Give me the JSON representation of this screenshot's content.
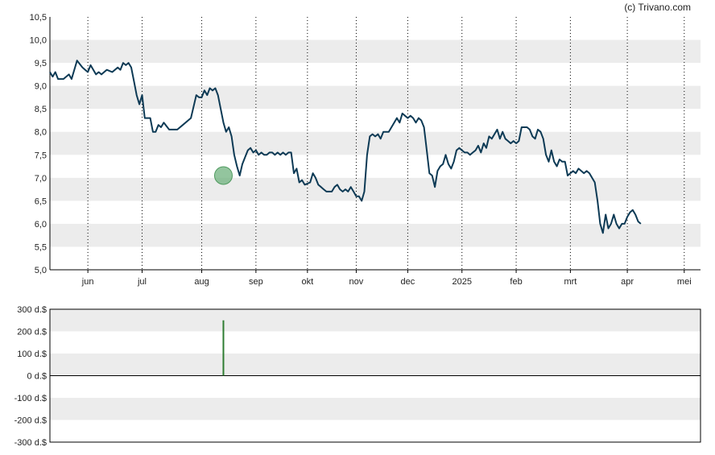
{
  "copyright": "(c) Trivano.com",
  "colors": {
    "band": "#ececec",
    "line": "#0d3a55",
    "marker_fill": "#6fb27d",
    "volume_bar": "#2e7d32",
    "vgrid": "#000000"
  },
  "chart_data": [
    {
      "type": "line",
      "title": "",
      "xlabel": "",
      "ylabel": "",
      "ylim": [
        5.0,
        10.5
      ],
      "y_ticks": [
        "5,0",
        "5,5",
        "6,0",
        "6,5",
        "7,0",
        "7,5",
        "8,0",
        "8,5",
        "9,0",
        "9,5",
        "10,0",
        "10,5"
      ],
      "x_ticks": [
        "jun",
        "jul",
        "aug",
        "sep",
        "okt",
        "nov",
        "dec",
        "2025",
        "feb",
        "mrt",
        "apr",
        "mei"
      ],
      "x_tick_pos": [
        0.7,
        1.7,
        2.8,
        3.8,
        4.75,
        5.65,
        6.6,
        7.6,
        8.6,
        9.6,
        10.65,
        11.7
      ],
      "grid": "horizontal bands, dotted vertical lines at month ticks",
      "marker": {
        "x": 3.2,
        "y": 7.05
      },
      "series": [
        {
          "values": [
            [
              0.0,
              9.3
            ],
            [
              0.05,
              9.2
            ],
            [
              0.1,
              9.3
            ],
            [
              0.15,
              9.15
            ],
            [
              0.25,
              9.15
            ],
            [
              0.3,
              9.2
            ],
            [
              0.35,
              9.25
            ],
            [
              0.4,
              9.15
            ],
            [
              0.5,
              9.55
            ],
            [
              0.6,
              9.4
            ],
            [
              0.65,
              9.35
            ],
            [
              0.7,
              9.3
            ],
            [
              0.75,
              9.45
            ],
            [
              0.85,
              9.25
            ],
            [
              0.9,
              9.3
            ],
            [
              0.95,
              9.25
            ],
            [
              1.0,
              9.3
            ],
            [
              1.05,
              9.35
            ],
            [
              1.15,
              9.3
            ],
            [
              1.25,
              9.4
            ],
            [
              1.3,
              9.35
            ],
            [
              1.35,
              9.5
            ],
            [
              1.4,
              9.45
            ],
            [
              1.45,
              9.5
            ],
            [
              1.5,
              9.4
            ],
            [
              1.55,
              9.1
            ],
            [
              1.6,
              8.8
            ],
            [
              1.65,
              8.6
            ],
            [
              1.7,
              8.8
            ],
            [
              1.75,
              8.3
            ],
            [
              1.85,
              8.3
            ],
            [
              1.9,
              8.0
            ],
            [
              1.95,
              8.0
            ],
            [
              2.0,
              8.15
            ],
            [
              2.05,
              8.1
            ],
            [
              2.1,
              8.2
            ],
            [
              2.2,
              8.05
            ],
            [
              2.35,
              8.05
            ],
            [
              2.45,
              8.15
            ],
            [
              2.55,
              8.25
            ],
            [
              2.6,
              8.3
            ],
            [
              2.7,
              8.8
            ],
            [
              2.75,
              8.75
            ],
            [
              2.8,
              8.75
            ],
            [
              2.85,
              8.9
            ],
            [
              2.9,
              8.8
            ],
            [
              2.95,
              8.95
            ],
            [
              3.0,
              8.9
            ],
            [
              3.05,
              8.95
            ],
            [
              3.1,
              8.8
            ],
            [
              3.15,
              8.5
            ],
            [
              3.2,
              8.2
            ],
            [
              3.25,
              8.0
            ],
            [
              3.3,
              8.1
            ],
            [
              3.35,
              7.9
            ],
            [
              3.4,
              7.5
            ],
            [
              3.45,
              7.25
            ],
            [
              3.5,
              7.05
            ],
            [
              3.55,
              7.3
            ],
            [
              3.6,
              7.45
            ],
            [
              3.65,
              7.6
            ],
            [
              3.7,
              7.65
            ],
            [
              3.75,
              7.55
            ],
            [
              3.8,
              7.6
            ],
            [
              3.85,
              7.5
            ],
            [
              3.9,
              7.55
            ],
            [
              3.95,
              7.5
            ],
            [
              4.0,
              7.5
            ],
            [
              4.05,
              7.55
            ],
            [
              4.1,
              7.55
            ],
            [
              4.15,
              7.5
            ],
            [
              4.2,
              7.55
            ],
            [
              4.25,
              7.5
            ],
            [
              4.3,
              7.55
            ],
            [
              4.35,
              7.5
            ],
            [
              4.4,
              7.55
            ],
            [
              4.45,
              7.55
            ],
            [
              4.5,
              7.1
            ],
            [
              4.55,
              7.2
            ],
            [
              4.6,
              6.9
            ],
            [
              4.65,
              6.95
            ],
            [
              4.7,
              6.85
            ],
            [
              4.8,
              6.9
            ],
            [
              4.85,
              7.1
            ],
            [
              4.9,
              7.0
            ],
            [
              4.95,
              6.85
            ],
            [
              5.0,
              6.8
            ],
            [
              5.05,
              6.75
            ],
            [
              5.1,
              6.7
            ],
            [
              5.2,
              6.7
            ],
            [
              5.25,
              6.8
            ],
            [
              5.3,
              6.85
            ],
            [
              5.35,
              6.75
            ],
            [
              5.4,
              6.7
            ],
            [
              5.45,
              6.75
            ],
            [
              5.5,
              6.7
            ],
            [
              5.55,
              6.8
            ],
            [
              5.6,
              6.7
            ],
            [
              5.65,
              6.6
            ],
            [
              5.7,
              6.6
            ],
            [
              5.75,
              6.5
            ],
            [
              5.8,
              6.7
            ],
            [
              5.85,
              7.5
            ],
            [
              5.9,
              7.9
            ],
            [
              5.95,
              7.95
            ],
            [
              6.0,
              7.9
            ],
            [
              6.05,
              7.95
            ],
            [
              6.1,
              7.85
            ],
            [
              6.15,
              8.0
            ],
            [
              6.25,
              8.0
            ],
            [
              6.3,
              8.1
            ],
            [
              6.35,
              8.2
            ],
            [
              6.4,
              8.3
            ],
            [
              6.45,
              8.2
            ],
            [
              6.5,
              8.4
            ],
            [
              6.55,
              8.35
            ],
            [
              6.6,
              8.3
            ],
            [
              6.65,
              8.35
            ],
            [
              6.7,
              8.3
            ],
            [
              6.75,
              8.2
            ],
            [
              6.8,
              8.3
            ],
            [
              6.85,
              8.25
            ],
            [
              6.9,
              8.1
            ],
            [
              6.95,
              7.6
            ],
            [
              7.0,
              7.1
            ],
            [
              7.05,
              7.05
            ],
            [
              7.1,
              6.8
            ],
            [
              7.15,
              7.15
            ],
            [
              7.2,
              7.25
            ],
            [
              7.25,
              7.3
            ],
            [
              7.3,
              7.5
            ],
            [
              7.35,
              7.3
            ],
            [
              7.4,
              7.2
            ],
            [
              7.45,
              7.35
            ],
            [
              7.5,
              7.6
            ],
            [
              7.55,
              7.65
            ],
            [
              7.6,
              7.6
            ],
            [
              7.65,
              7.55
            ],
            [
              7.7,
              7.55
            ],
            [
              7.75,
              7.5
            ],
            [
              7.8,
              7.55
            ],
            [
              7.85,
              7.6
            ],
            [
              7.9,
              7.7
            ],
            [
              7.95,
              7.55
            ],
            [
              8.0,
              7.75
            ],
            [
              8.05,
              7.65
            ],
            [
              8.1,
              7.9
            ],
            [
              8.15,
              7.85
            ],
            [
              8.2,
              7.95
            ],
            [
              8.25,
              8.05
            ],
            [
              8.3,
              7.85
            ],
            [
              8.35,
              8.0
            ],
            [
              8.4,
              7.85
            ],
            [
              8.45,
              7.8
            ],
            [
              8.5,
              7.75
            ],
            [
              8.55,
              7.8
            ],
            [
              8.6,
              7.75
            ],
            [
              8.65,
              7.8
            ],
            [
              8.7,
              8.1
            ],
            [
              8.75,
              8.1
            ],
            [
              8.8,
              8.1
            ],
            [
              8.85,
              8.05
            ],
            [
              8.9,
              7.9
            ],
            [
              8.95,
              7.85
            ],
            [
              9.0,
              8.05
            ],
            [
              9.05,
              8.0
            ],
            [
              9.1,
              7.85
            ],
            [
              9.15,
              7.5
            ],
            [
              9.2,
              7.35
            ],
            [
              9.25,
              7.6
            ],
            [
              9.3,
              7.35
            ],
            [
              9.35,
              7.25
            ],
            [
              9.4,
              7.4
            ],
            [
              9.45,
              7.35
            ],
            [
              9.5,
              7.35
            ],
            [
              9.55,
              7.05
            ],
            [
              9.6,
              7.1
            ],
            [
              9.65,
              7.15
            ],
            [
              9.7,
              7.1
            ],
            [
              9.75,
              7.2
            ],
            [
              9.8,
              7.15
            ],
            [
              9.85,
              7.1
            ],
            [
              9.9,
              7.15
            ],
            [
              9.95,
              7.1
            ],
            [
              10.0,
              7.0
            ],
            [
              10.05,
              6.9
            ],
            [
              10.1,
              6.5
            ],
            [
              10.15,
              6.0
            ],
            [
              10.2,
              5.8
            ],
            [
              10.25,
              6.2
            ],
            [
              10.3,
              5.9
            ],
            [
              10.35,
              6.0
            ],
            [
              10.4,
              6.2
            ],
            [
              10.45,
              6.0
            ],
            [
              10.5,
              5.9
            ],
            [
              10.55,
              6.0
            ],
            [
              10.6,
              6.0
            ],
            [
              10.65,
              6.15
            ],
            [
              10.7,
              6.25
            ],
            [
              10.75,
              6.3
            ],
            [
              10.8,
              6.2
            ],
            [
              10.85,
              6.05
            ],
            [
              10.9,
              6.0
            ]
          ]
        }
      ]
    },
    {
      "type": "bar",
      "title": "",
      "xlabel": "",
      "ylabel": "",
      "ylim": [
        -300,
        300
      ],
      "y_ticks": [
        "300 d.$",
        "200 d.$",
        "100 d.$",
        "0 d.$",
        "-100 d.$",
        "-200 d.$",
        "-300 d.$"
      ],
      "bars": [
        {
          "x": 3.2,
          "value": 250
        }
      ]
    }
  ]
}
